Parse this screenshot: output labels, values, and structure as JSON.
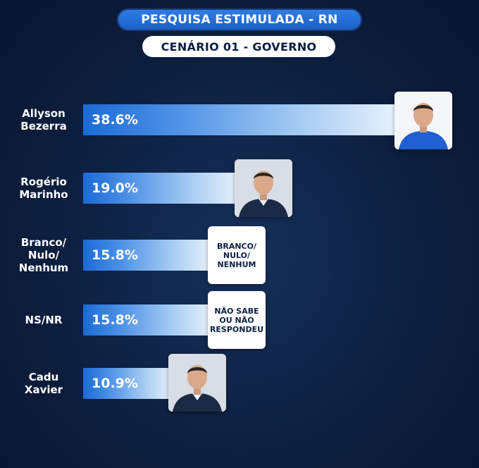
{
  "header": {
    "title": "PESQUISA ESTIMULADA - RN",
    "subtitle": "CENÁRIO 01 - GOVERNO"
  },
  "chart_data": {
    "type": "bar",
    "orientation": "horizontal",
    "categories": [
      "Allyson\nBezerra",
      "Rogério\nMarinho",
      "Branco/\nNulo/\nNenhum",
      "NS/NR",
      "Cadu\nXavier"
    ],
    "values": [
      38.6,
      19.0,
      15.8,
      15.8,
      10.9
    ],
    "value_labels": [
      "38.6%",
      "19.0%",
      "15.8%",
      "15.8%",
      "10.9%"
    ],
    "title": "PESQUISA ESTIMULADA - RN",
    "subtitle": "CENÁRIO 01 - GOVERNO",
    "xlim": [
      0,
      38.6
    ],
    "grid": false,
    "legend": "none"
  },
  "cards": [
    {
      "kind": "photo",
      "icon": "person-photo-blue-shirt"
    },
    {
      "kind": "photo",
      "icon": "person-photo-suit"
    },
    {
      "kind": "text",
      "text": "BRANCO/\nNULO/\nNENHUM"
    },
    {
      "kind": "text",
      "text": "NÃO SABE\nOU NÃO\nRESPONDEU"
    },
    {
      "kind": "photo",
      "icon": "person-photo-suit"
    }
  ],
  "colors": {
    "background": "#0d1f3f",
    "bar_start": "#1b6ad6",
    "bar_end": "#e9f2fb",
    "title_pill": "#2f7fe6"
  }
}
